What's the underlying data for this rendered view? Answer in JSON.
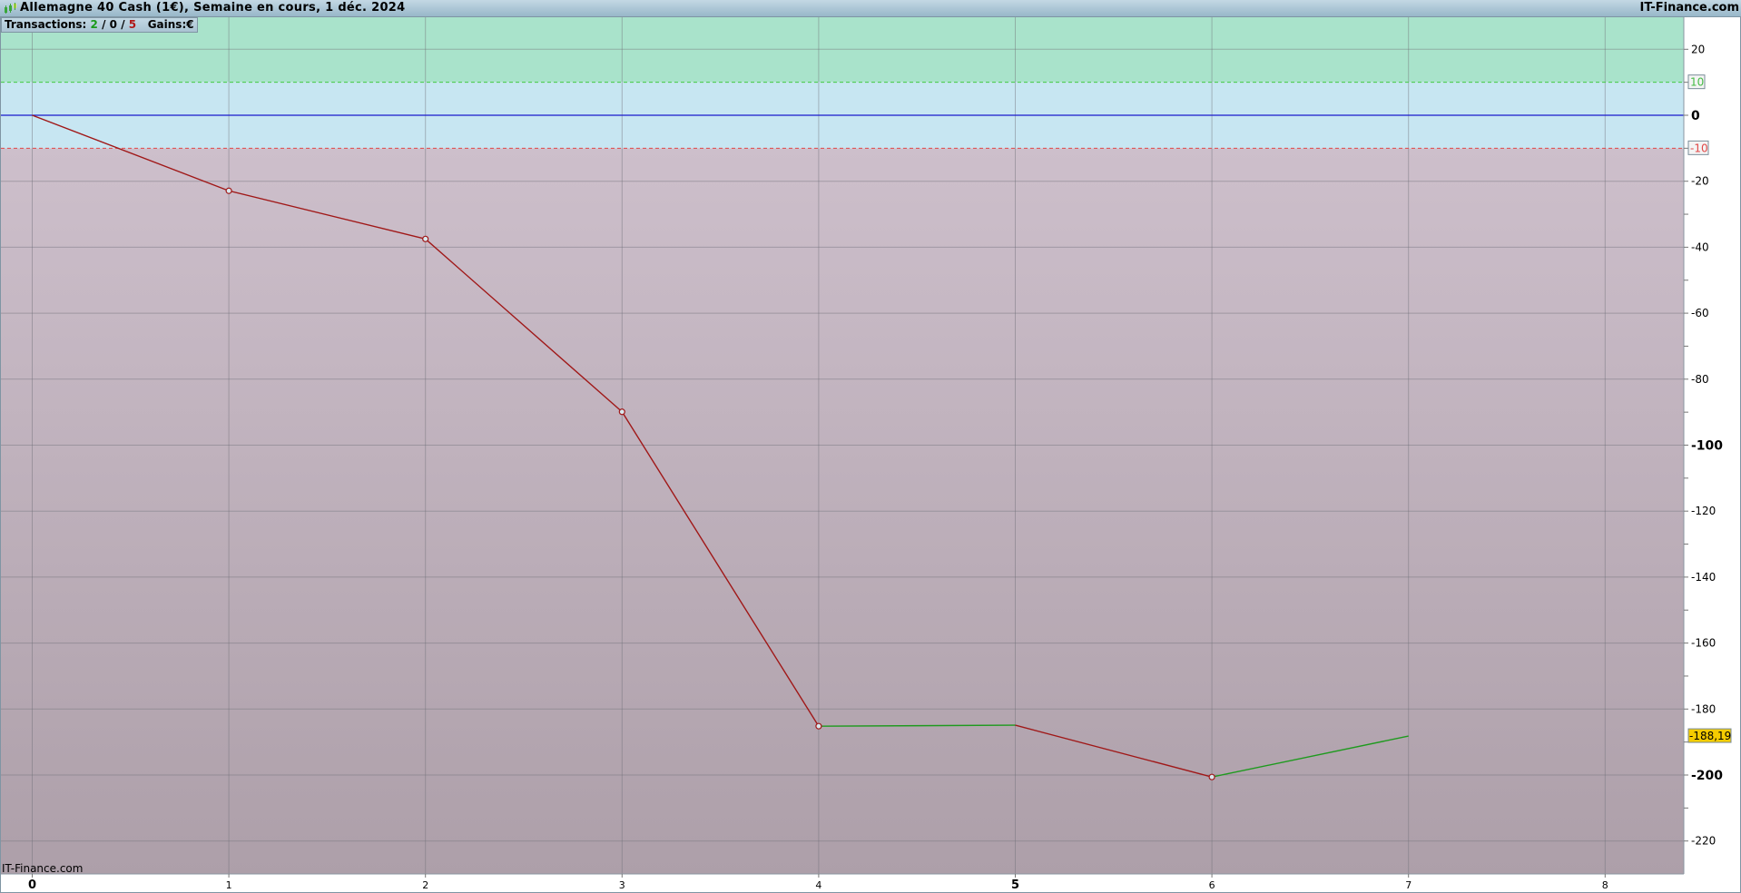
{
  "header": {
    "title": "Allemagne 40 Cash (1€), Semaine en cours, 1 déc. 2024",
    "brand": "IT-Finance.com",
    "logo_icon": "candlestick-icon"
  },
  "stats": {
    "transactions_label": "Transactions:",
    "wins": "2",
    "neutral": "0",
    "losses": "5",
    "sep": "/",
    "gains_label": "Gains:",
    "gains_unit": "€"
  },
  "watermark": "IT-Finance.com",
  "colors": {
    "profit_zone": "#a9e3cb",
    "neutral_zone": "#c7e6f2",
    "loss_zone_top": "#cdbfcb",
    "loss_zone_bottom": "#ad9fa9",
    "loss_line": "#a01818",
    "gain_line": "#1e9a1e",
    "zero_line": "#1a1acc",
    "last_value_badge": "#f5cc00"
  },
  "chart_data": {
    "type": "line",
    "x": [
      0,
      1,
      2,
      3,
      4,
      5,
      6,
      7
    ],
    "y": [
      0,
      -22.9,
      -37.5,
      -89.9,
      -185.2,
      -184.9,
      -200.6,
      -188.19
    ],
    "xlim": [
      -0.15,
      8.4
    ],
    "ylim": [
      -225,
      30
    ],
    "x_ticks": [
      "0",
      "1",
      "2",
      "3",
      "4",
      "5",
      "6",
      "7",
      "8"
    ],
    "y_ticks": [
      "20",
      "0",
      "-20",
      "-40",
      "-60",
      "-80",
      "-100",
      "-120",
      "-140",
      "-160",
      "-180",
      "-200",
      "-220"
    ],
    "y_tick_values": [
      20,
      0,
      -20,
      -40,
      -60,
      -80,
      -100,
      -120,
      -140,
      -160,
      -180,
      -200,
      -220
    ],
    "upper_threshold": {
      "value": 10,
      "label": "10"
    },
    "lower_threshold": {
      "value": -10,
      "label": "-10"
    },
    "last_value_label": "-188,19",
    "grid": true,
    "segment_colors": [
      "loss",
      "loss",
      "loss",
      "loss",
      "gain",
      "loss",
      "gain"
    ],
    "markers_at": [
      1,
      2,
      3,
      4,
      6
    ]
  }
}
